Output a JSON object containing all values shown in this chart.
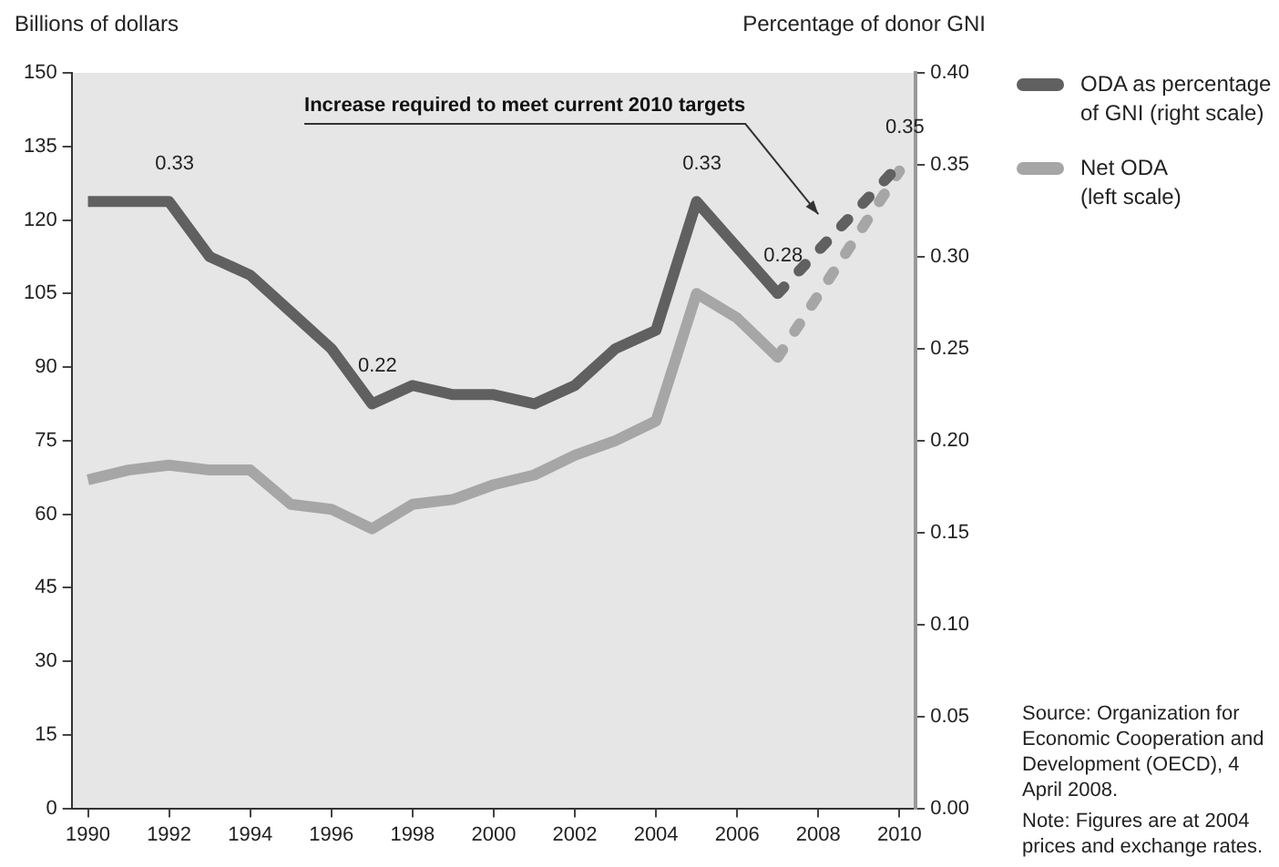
{
  "chart_data": {
    "type": "line",
    "ylabel": "Billions of dollars",
    "y2label": "Percentage of donor GNI",
    "annotations": [
      "Increase required to meet current 2010 targets",
      "Source: Organization for Economic Cooperation and Development (OECD), 4 April 2008.",
      "Note: Figures are at 2004 prices and exchange rates."
    ],
    "xlim": [
      1989.6,
      2010.4
    ],
    "xticks": [
      1990,
      1992,
      1994,
      1996,
      1998,
      2000,
      2002,
      2004,
      2006,
      2008,
      2010
    ],
    "ylim": [
      0,
      150
    ],
    "yticks": [
      0,
      15,
      30,
      45,
      60,
      75,
      90,
      105,
      120,
      135,
      150
    ],
    "y2lim": [
      0,
      0.4
    ],
    "y2ticks": [
      {
        "value": 0,
        "label": "0.00"
      },
      0.05,
      {
        "value": 0.1,
        "label": "0.10"
      },
      0.15,
      {
        "value": 0.2,
        "label": "0.20"
      },
      0.25,
      {
        "value": 0.3,
        "label": "0.30"
      },
      0.35,
      {
        "value": 0.4,
        "label": "0.40"
      }
    ],
    "legend": "top right",
    "series": [
      {
        "name": "ODA as percentage of GNI (right scale)",
        "color": "#606060",
        "axis": "y2",
        "x": [
          1990,
          1991,
          1992,
          1993,
          1994,
          1995,
          1996,
          1997,
          1998,
          1999,
          2000,
          2001,
          2002,
          2003,
          2004,
          2005,
          2006,
          2007
        ],
        "values": [
          0.33,
          0.33,
          0.33,
          0.3,
          0.29,
          0.27,
          0.25,
          0.22,
          0.23,
          0.225,
          0.225,
          0.22,
          0.23,
          0.25,
          0.26,
          0.33,
          0.305,
          0.28
        ],
        "value_labels": [
          null,
          null,
          "0.33",
          null,
          null,
          null,
          null,
          "0.22",
          null,
          null,
          null,
          null,
          null,
          null,
          null,
          "0.33",
          null,
          "0.28"
        ]
      },
      {
        "name": "Net ODA (left scale)",
        "color": "#a6a6a6",
        "x": [
          1990,
          1991,
          1992,
          1993,
          1994,
          1995,
          1996,
          1997,
          1998,
          1999,
          2000,
          2001,
          2002,
          2003,
          2004,
          2005,
          2006,
          2007
        ],
        "values": [
          67,
          69,
          70,
          69,
          69,
          62,
          61,
          57,
          62,
          63,
          66,
          68,
          72,
          75,
          79,
          105,
          100,
          92
        ]
      },
      {
        "color": "#606060",
        "axis": "y2",
        "line_style": "dashed",
        "x": [
          2007,
          2010
        ],
        "values": [
          0.28,
          0.35
        ],
        "value_labels": [
          null,
          "0.35"
        ]
      },
      {
        "color": "#a6a6a6",
        "line_style": "dashed",
        "x": [
          2007,
          2010
        ],
        "values": [
          92,
          130
        ]
      }
    ]
  }
}
